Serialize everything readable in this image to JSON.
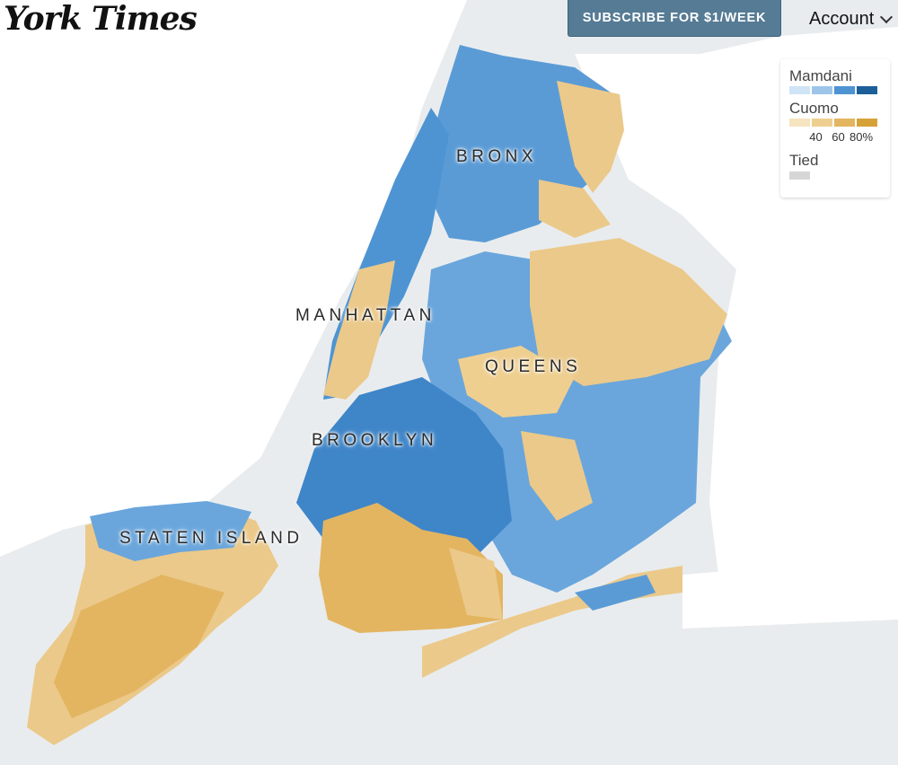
{
  "header": {
    "masthead": "York Times",
    "subscribe_label": "SUBSCRIBE FOR $1/WEEK",
    "account_label": "Account"
  },
  "legend": {
    "mamdani_label": "Mamdani",
    "mamdani_colors": [
      "#cfe4f6",
      "#9dc5ea",
      "#4e94d3",
      "#1c5f99"
    ],
    "cuomo_label": "Cuomo",
    "cuomo_colors": [
      "#f6e3bf",
      "#efcf8f",
      "#e3b561",
      "#d6a238"
    ],
    "ticks": [
      "40",
      "60",
      "80%"
    ],
    "tied_label": "Tied",
    "tied_color": "#d6d6d6"
  },
  "boroughs": {
    "bronx": "BRONX",
    "manhattan": "MANHATTAN",
    "queens": "QUEENS",
    "brooklyn": "BROOKLYN",
    "staten_island": "STATEN ISLAND"
  },
  "colors": {
    "water": "#e9ecee",
    "land": "#ffffff",
    "mamdani": "#5a9bd6",
    "cuomo": "#ebc98a"
  }
}
